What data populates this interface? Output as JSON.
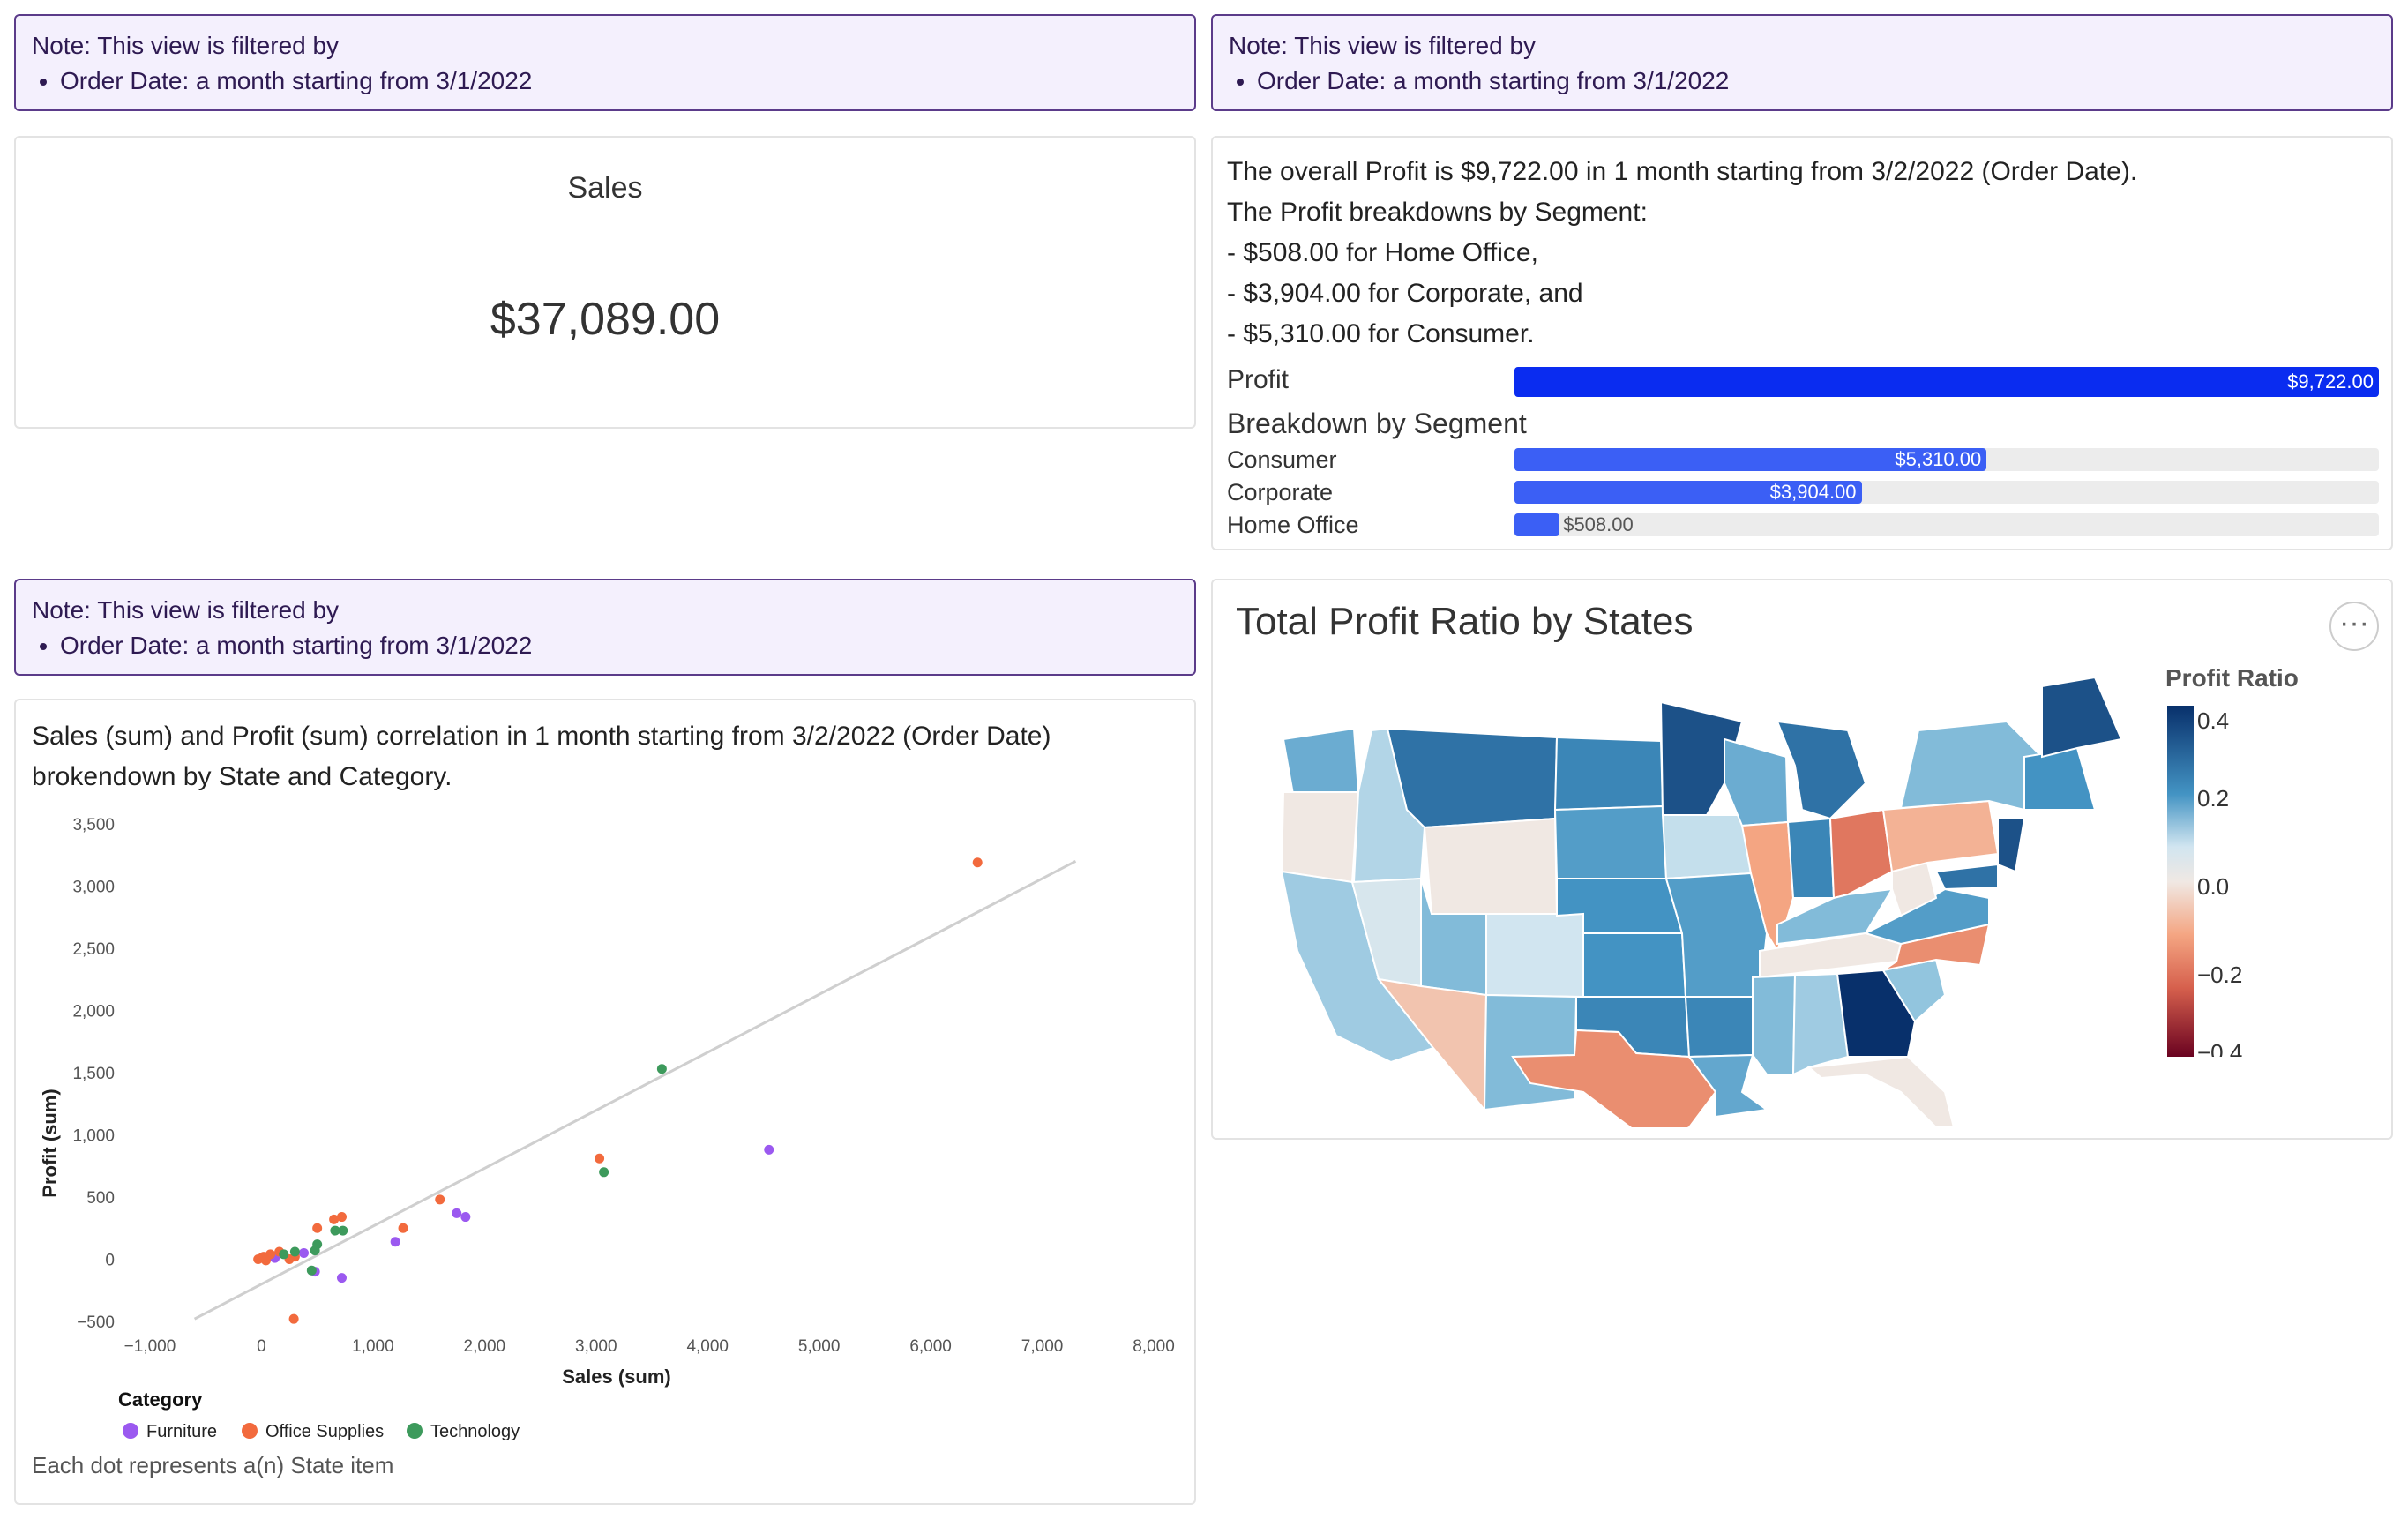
{
  "notes": {
    "heading": "Note: This view is filtered by",
    "filter": "Order Date: a month starting from 3/1/2022"
  },
  "kpi": {
    "title": "Sales",
    "value": "$37,089.00"
  },
  "profit_summary": {
    "lines": [
      "The overall Profit is $9,722.00 in 1 month starting from 3/2/2022 (Order Date).",
      "The Profit breakdowns by Segment:",
      "- $508.00 for Home Office,",
      "- $3,904.00 for Corporate, and",
      "- $5,310.00 for Consumer."
    ],
    "profit_label": "Profit",
    "profit_value": "$9,722.00",
    "breakdown_label": "Breakdown by Segment",
    "segments": [
      {
        "name": "Consumer",
        "value": 5310,
        "label": "$5,310.00"
      },
      {
        "name": "Corporate",
        "value": 3904,
        "label": "$3,904.00"
      },
      {
        "name": "Home Office",
        "value": 508,
        "label": "$508.00"
      }
    ],
    "max": 9722,
    "colors": {
      "total": "#0a2cf0",
      "segment": "#3b5ff5"
    }
  },
  "scatter": {
    "description": "Sales (sum) and Profit (sum) correlation in 1 month starting from 3/2/2022 (Order Date) brokendown by State and Category.",
    "footnote": "Each dot represents a(n) State item",
    "legend_title": "Category"
  },
  "map": {
    "title": "Total Profit Ratio by States",
    "legend_title": "Profit Ratio",
    "legend_ticks": [
      "0.4",
      "0.2",
      "0.0",
      "−0.2",
      "−0.4"
    ],
    "menu_icon": "more-horizontal-icon"
  },
  "chart_data": [
    {
      "type": "scatter",
      "xlabel": "Sales (sum)",
      "ylabel": "Profit (sum)",
      "xlim": [
        -1000,
        8000
      ],
      "ylim": [
        -500,
        3500
      ],
      "xticks": [
        "−1,000",
        "0",
        "1,000",
        "2,000",
        "3,000",
        "4,000",
        "5,000",
        "6,000",
        "7,000",
        "8,000"
      ],
      "yticks": [
        "3,500",
        "3,000",
        "2,500",
        "2,000",
        "1,500",
        "1,000",
        "500",
        "0",
        "−500"
      ],
      "trendline": [
        [
          -600,
          -480
        ],
        [
          7300,
          3200
        ]
      ],
      "legend_placement": "bottom-left",
      "series": [
        {
          "name": "Furniture",
          "color": "#9b59f0",
          "points": [
            [
              4550,
              880
            ],
            [
              1750,
              370
            ],
            [
              1830,
              340
            ],
            [
              1200,
              140
            ],
            [
              720,
              -150
            ],
            [
              480,
              -100
            ],
            [
              380,
              50
            ],
            [
              120,
              10
            ],
            [
              90,
              30
            ]
          ]
        },
        {
          "name": "Office Supplies",
          "color": "#f26a3d",
          "points": [
            [
              6420,
              3190
            ],
            [
              3030,
              810
            ],
            [
              1600,
              480
            ],
            [
              1270,
              250
            ],
            [
              720,
              340
            ],
            [
              650,
              320
            ],
            [
              500,
              250
            ],
            [
              290,
              -480
            ],
            [
              160,
              60
            ],
            [
              80,
              40
            ],
            [
              20,
              20
            ],
            [
              0,
              10
            ],
            [
              -30,
              0
            ],
            [
              40,
              -10
            ],
            [
              300,
              20
            ],
            [
              250,
              0
            ]
          ]
        },
        {
          "name": "Technology",
          "color": "#3d9a5c",
          "points": [
            [
              3590,
              1530
            ],
            [
              3070,
              700
            ],
            [
              730,
              230
            ],
            [
              660,
              230
            ],
            [
              500,
              120
            ],
            [
              480,
              70
            ],
            [
              300,
              60
            ],
            [
              450,
              -90
            ],
            [
              200,
              40
            ]
          ]
        }
      ]
    },
    {
      "type": "heatmap",
      "title": "Total Profit Ratio by States",
      "legend": "Profit Ratio",
      "range": [
        -0.45,
        0.45
      ]
    }
  ]
}
